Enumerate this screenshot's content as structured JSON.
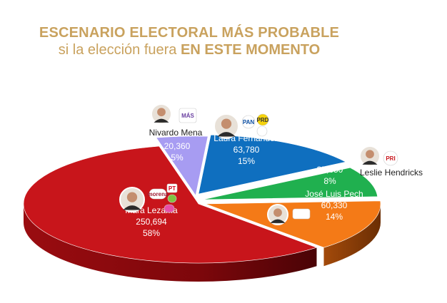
{
  "header": {
    "title": "ESCENARIO ELECTORAL MÁS PROBABLE",
    "subtitle_prefix": "si la elección fuera ",
    "subtitle_bold": "EN ESTE MOMENTO"
  },
  "colors": {
    "title": "#c9a25e",
    "mara": "#c8151b",
    "nivardo": "#a79cf2",
    "laura": "#0f6fbf",
    "leslie": "#20b04f",
    "jose": "#f47a17"
  },
  "chart_data": {
    "type": "pie",
    "title": "ESCENARIO ELECTORAL MÁS PROBABLE si la elección fuera EN ESTE MOMENTO",
    "style": "3d",
    "slices": [
      {
        "name": "Nivardo Mena",
        "value": 20360,
        "value_label": "20,360",
        "percent": 5,
        "percent_label": "5%",
        "color": "#a79cf2",
        "parties": [
          "MÁS"
        ]
      },
      {
        "name": "Laura Fernández",
        "value": 63780,
        "value_label": "63,780",
        "percent": 15,
        "percent_label": "15%",
        "color": "#0f6fbf",
        "parties": [
          "PAN",
          "PRD",
          "Confianza"
        ]
      },
      {
        "name": "Leslie Hendricks",
        "value": 35650,
        "value_label": "35,650",
        "percent": 8,
        "percent_label": "8%",
        "color": "#20b04f",
        "parties": [
          "PRI"
        ]
      },
      {
        "name": "José Luis Pech",
        "value": 60330,
        "value_label": "60,330",
        "percent": 14,
        "percent_label": "14%",
        "color": "#f47a17",
        "parties": [
          "Movimiento Ciudadano"
        ]
      },
      {
        "name": "Mara Lezama",
        "value": 250694,
        "value_label": "250,694",
        "percent": 58,
        "percent_label": "58%",
        "color": "#c8151b",
        "parties": [
          "morena",
          "PT",
          "Verde",
          "FxM"
        ]
      }
    ]
  },
  "logos": {
    "mas": "MÁS",
    "pan": "PAN",
    "prd": "PRD",
    "pri": "PRI",
    "morena": "morena",
    "pt": "PT"
  }
}
